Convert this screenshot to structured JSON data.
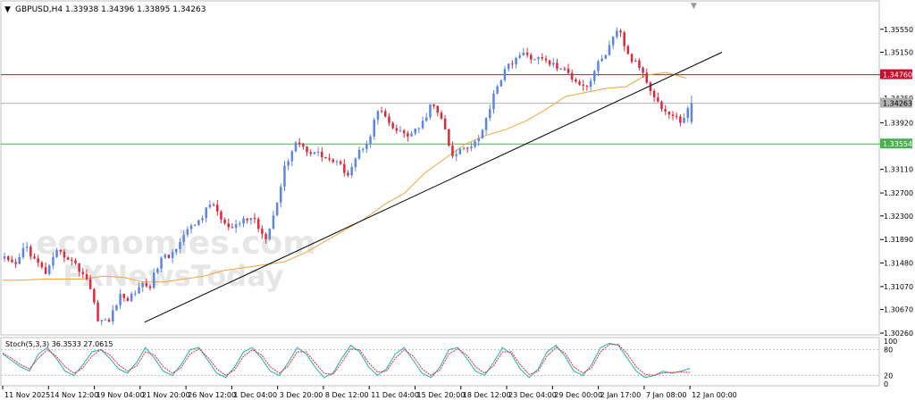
{
  "header": {
    "symbol_label": "GBPUSD,H4",
    "ohlc_label": "1.33938 1.34396 1.33895 1.34263"
  },
  "watermark": {
    "line1": "economies.com",
    "line2": "FXNewsToday"
  },
  "stoch_panel": {
    "label": "Stoch(5,3,3) 36.3533 27.0615",
    "levels": [
      "100",
      "80",
      "20",
      "0"
    ]
  },
  "colors": {
    "bull": "#5b86e5",
    "bear": "#e0283a",
    "ma": "#f2a33a",
    "trendline": "#000000",
    "resistance": "#c8102e",
    "support": "#4caf50",
    "stoch_main": "#20b2aa",
    "stoch_signal": "#e0283a"
  },
  "chart_data": [
    {
      "type": "candlestick",
      "title": "GBPUSD,H4",
      "ohlc_last": {
        "open": 1.33938,
        "high": 1.34396,
        "low": 1.33895,
        "close": 1.34263
      },
      "ylim": [
        1.3026,
        1.3578
      ],
      "y_ticks": [
        "1.35550",
        "1.35150",
        "1.34760",
        "1.34350",
        "1.33920",
        "1.33554",
        "1.33110",
        "1.32700",
        "1.32300",
        "1.31890",
        "1.31480",
        "1.31070",
        "1.30670",
        "1.30260"
      ],
      "x_ticks": [
        "11 Nov 2025",
        "14 Nov 12:00",
        "19 Nov 04:00",
        "21 Nov 20:00",
        "26 Nov 12:00",
        "1 Dec 04:00",
        "3 Dec 20:00",
        "8 Dec 12:00",
        "11 Dec 04:00",
        "15 Dec 20:00",
        "18 Dec 12:00",
        "23 Dec 04:00",
        "29 Dec 00:00",
        "2 Jan 17:00",
        "7 Jan 08:00",
        "12 Jan 00:00"
      ],
      "price_path": [
        1.3155,
        1.314,
        1.318,
        1.315,
        1.313,
        1.3165,
        1.316,
        1.314,
        1.312,
        1.305,
        1.3045,
        1.309,
        1.3085,
        1.311,
        1.311,
        1.3155,
        1.316,
        1.3195,
        1.321,
        1.323,
        1.3255,
        1.3215,
        1.3205,
        1.3225,
        1.3225,
        1.319,
        1.324,
        1.332,
        1.336,
        1.3345,
        1.334,
        1.333,
        1.332,
        1.3305,
        1.334,
        1.3365,
        1.342,
        1.3385,
        1.3375,
        1.337,
        1.3385,
        1.3425,
        1.34,
        1.333,
        1.335,
        1.3355,
        1.338,
        1.3445,
        1.348,
        1.3505,
        1.351,
        1.3505,
        1.35,
        1.349,
        1.348,
        1.3465,
        1.3455,
        1.3495,
        1.352,
        1.3555,
        1.3505,
        1.349,
        1.3455,
        1.342,
        1.3405,
        1.3395,
        1.3426
      ],
      "series": [
        {
          "name": "Moving average",
          "values": [
            1.3118,
            1.3118,
            1.312,
            1.312,
            1.312,
            1.3125,
            1.3123,
            1.3115,
            1.3115,
            1.312,
            1.3125,
            1.3135,
            1.314,
            1.3145,
            1.315,
            1.3165,
            1.3185,
            1.3205,
            1.3225,
            1.325,
            1.327,
            1.3305,
            1.333,
            1.3355,
            1.337,
            1.338,
            1.3395,
            1.3415,
            1.3438,
            1.3445,
            1.3452,
            1.3455,
            1.3475,
            1.348,
            1.347
          ]
        }
      ],
      "trendline": {
        "from": {
          "x": "19 Nov 04:00",
          "y": 1.3045
        },
        "to": {
          "x": "12 Jan 00:00",
          "y": 1.3515
        }
      },
      "horizontal_levels": [
        {
          "label": "1.34760",
          "value": 1.3476
        },
        {
          "label": "1.34263",
          "value": 1.34263
        },
        {
          "label": "1.33554",
          "value": 1.33554
        }
      ],
      "grid": false
    },
    {
      "type": "line",
      "title": "Stoch(5,3,3)",
      "ylim": [
        0,
        100
      ],
      "y_ticks": [
        "100",
        "80",
        "20",
        "0"
      ],
      "values_last": {
        "main": 36.3533,
        "signal": 27.0615
      },
      "series": [
        {
          "values": [
            70,
            55,
            40,
            30,
            70,
            85,
            60,
            30,
            20,
            45,
            75,
            80,
            60,
            35,
            25,
            50,
            85,
            60,
            30,
            20,
            45,
            80,
            85,
            55,
            25,
            15,
            40,
            75,
            85,
            60,
            30,
            20,
            50,
            85,
            70,
            40,
            15,
            25,
            60,
            90,
            75,
            40,
            20,
            35,
            70,
            85,
            55,
            25,
            15,
            40,
            80,
            85,
            60,
            30,
            20,
            50,
            85,
            70,
            35,
            15,
            35,
            75,
            90,
            65,
            30,
            20,
            45,
            85,
            95,
            90,
            60,
            30,
            15,
            20,
            30,
            25,
            30,
            36.35
          ]
        },
        {
          "values": [
            72,
            60,
            45,
            35,
            60,
            80,
            65,
            40,
            25,
            38,
            65,
            80,
            68,
            45,
            30,
            42,
            75,
            68,
            40,
            25,
            38,
            70,
            82,
            62,
            35,
            20,
            33,
            65,
            80,
            68,
            40,
            25,
            42,
            75,
            75,
            50,
            25,
            22,
            50,
            82,
            80,
            50,
            28,
            30,
            60,
            80,
            65,
            35,
            20,
            33,
            70,
            82,
            68,
            40,
            25,
            42,
            75,
            75,
            45,
            22,
            30,
            65,
            85,
            72,
            40,
            25,
            38,
            75,
            92,
            92,
            70,
            40,
            22,
            20,
            26,
            27,
            28,
            27.06
          ]
        }
      ]
    }
  ]
}
